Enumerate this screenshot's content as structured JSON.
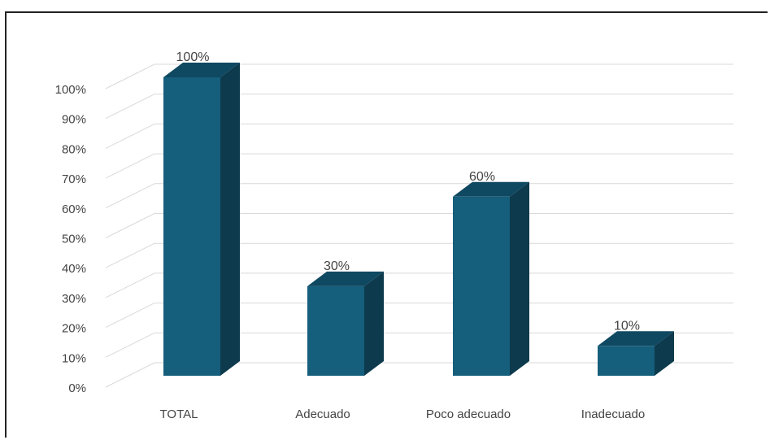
{
  "chart_data": {
    "type": "bar",
    "style": "3d-column",
    "categories": [
      "TOTAL",
      "Adecuado",
      "Poco adecuado",
      "Inadecuado"
    ],
    "values": [
      100,
      30,
      60,
      10
    ],
    "data_labels": [
      "100%",
      "30%",
      "60%",
      "10%"
    ],
    "y_ticks": [
      "0%",
      "10%",
      "20%",
      "30%",
      "40%",
      "50%",
      "60%",
      "70%",
      "80%",
      "90%",
      "100%"
    ],
    "ylim": [
      0,
      100
    ],
    "grid": true,
    "legend": "none",
    "colors": {
      "bar_front": "#155e7c",
      "bar_side": "#0d3a4c",
      "bar_top": "#0f4861",
      "grid": "#d9d9d9",
      "text": "#444444"
    }
  }
}
